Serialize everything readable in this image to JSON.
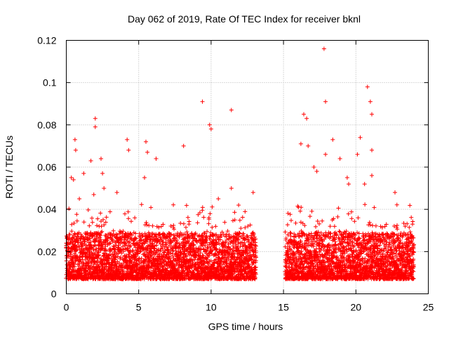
{
  "chart_data": {
    "type": "scatter",
    "title": "Day 062 of 2019, Rate Of TEC Index for receiver bknl",
    "xlabel": "GPS time / hours",
    "ylabel": "ROTI / TECUs",
    "xlim": [
      0,
      25
    ],
    "ylim": [
      0,
      0.12
    ],
    "x_ticks": [
      0,
      5,
      10,
      15,
      20,
      25
    ],
    "x_tick_labels": [
      "0",
      "5",
      "10",
      "15",
      "20",
      "25"
    ],
    "y_ticks": [
      0,
      0.02,
      0.04,
      0.06,
      0.08,
      0.1,
      0.12
    ],
    "y_tick_labels": [
      "0",
      "0.02",
      "0.04",
      "0.06",
      "0.08",
      "0.1",
      "0.12"
    ],
    "grid": true,
    "marker": "+",
    "color": "#ff0000",
    "data_gap_hours": [
      13.1,
      15.1
    ],
    "series": [
      {
        "name": "ROTI",
        "points": [
          [
            0.35,
            0.055
          ],
          [
            0.5,
            0.054
          ],
          [
            0.6,
            0.073
          ],
          [
            0.65,
            0.068
          ],
          [
            0.9,
            0.045
          ],
          [
            1.2,
            0.057
          ],
          [
            1.7,
            0.063
          ],
          [
            1.9,
            0.047
          ],
          [
            2.0,
            0.083
          ],
          [
            2.0,
            0.079
          ],
          [
            2.4,
            0.064
          ],
          [
            2.5,
            0.057
          ],
          [
            2.6,
            0.05
          ],
          [
            3.5,
            0.048
          ],
          [
            4.2,
            0.073
          ],
          [
            4.3,
            0.068
          ],
          [
            5.4,
            0.055
          ],
          [
            5.5,
            0.072
          ],
          [
            5.6,
            0.067
          ],
          [
            6.2,
            0.064
          ],
          [
            8.1,
            0.07
          ],
          [
            9.4,
            0.091
          ],
          [
            9.9,
            0.08
          ],
          [
            10.0,
            0.078
          ],
          [
            10.5,
            0.045
          ],
          [
            11.4,
            0.087
          ],
          [
            11.4,
            0.05
          ],
          [
            11.9,
            0.042
          ],
          [
            12.9,
            0.048
          ],
          [
            16.2,
            0.071
          ],
          [
            16.4,
            0.085
          ],
          [
            16.6,
            0.083
          ],
          [
            16.7,
            0.07
          ],
          [
            17.1,
            0.06
          ],
          [
            17.3,
            0.058
          ],
          [
            17.8,
            0.116
          ],
          [
            17.9,
            0.091
          ],
          [
            17.9,
            0.066
          ],
          [
            18.4,
            0.073
          ],
          [
            18.9,
            0.064
          ],
          [
            19.4,
            0.055
          ],
          [
            19.5,
            0.052
          ],
          [
            20.1,
            0.066
          ],
          [
            20.3,
            0.074
          ],
          [
            20.8,
            0.098
          ],
          [
            21.0,
            0.091
          ],
          [
            21.1,
            0.085
          ],
          [
            21.1,
            0.068
          ],
          [
            21.1,
            0.056
          ],
          [
            20.6,
            0.052
          ],
          [
            22.7,
            0.048
          ],
          [
            23.4,
            0.032
          ]
        ]
      }
    ]
  }
}
